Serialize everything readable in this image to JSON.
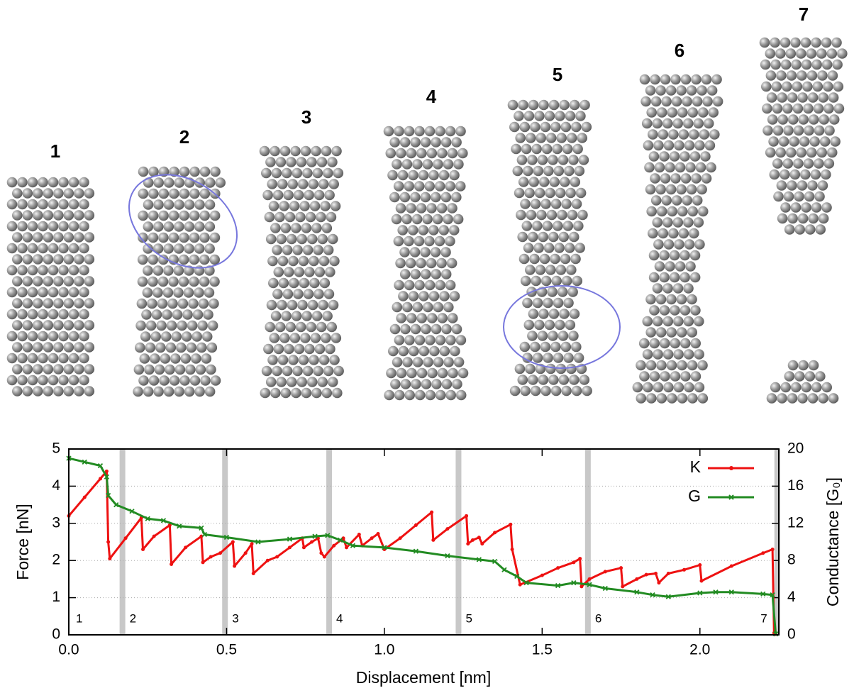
{
  "chart_data": {
    "type": "line",
    "x_label": "Displacement [nm]",
    "y_label": "Force [nN]",
    "y2_label": "Conductance [G₀]",
    "xlim": [
      0,
      2.25
    ],
    "xticks": [
      {
        "value": 0,
        "label": "0.0"
      },
      {
        "value": 0.5,
        "label": "0.5"
      },
      {
        "value": 1,
        "label": "1.0"
      },
      {
        "value": 1.5,
        "label": "1.5"
      },
      {
        "value": 2,
        "label": "2.0"
      }
    ],
    "ylim": [
      0,
      5
    ],
    "yticks": [
      0,
      1,
      2,
      3,
      4,
      5
    ],
    "y2lim": [
      0,
      20
    ],
    "y2ticks": [
      0,
      4,
      8,
      12,
      16,
      20
    ],
    "grid": true,
    "legend": "upper right",
    "stages": [
      {
        "x": 0.0,
        "label": "1"
      },
      {
        "x": 0.17,
        "label": "2"
      },
      {
        "x": 0.495,
        "label": "3"
      },
      {
        "x": 0.825,
        "label": "4"
      },
      {
        "x": 1.235,
        "label": "5"
      },
      {
        "x": 1.645,
        "label": "6"
      },
      {
        "x": 2.245,
        "label": "7"
      }
    ],
    "series": [
      {
        "name": "K",
        "color": "#ee1111",
        "x": [
          0.0,
          0.05,
          0.1,
          0.12,
          0.125,
          0.13,
          0.18,
          0.23,
          0.235,
          0.27,
          0.32,
          0.325,
          0.37,
          0.42,
          0.425,
          0.45,
          0.48,
          0.52,
          0.525,
          0.56,
          0.58,
          0.585,
          0.63,
          0.66,
          0.7,
          0.74,
          0.745,
          0.77,
          0.79,
          0.8,
          0.81,
          0.84,
          0.87,
          0.88,
          0.92,
          0.93,
          0.96,
          0.98,
          1.0,
          1.05,
          1.1,
          1.15,
          1.155,
          1.2,
          1.26,
          1.265,
          1.28,
          1.3,
          1.31,
          1.35,
          1.4,
          1.405,
          1.43,
          1.5,
          1.55,
          1.6,
          1.62,
          1.625,
          1.65,
          1.7,
          1.75,
          1.755,
          1.8,
          1.83,
          1.86,
          1.87,
          1.9,
          1.95,
          2.0,
          2.005,
          2.1,
          2.2,
          2.23,
          2.235,
          2.24
        ],
        "values": [
          3.2,
          3.7,
          4.2,
          4.4,
          2.5,
          2.05,
          2.6,
          3.15,
          2.3,
          2.65,
          2.95,
          1.9,
          2.35,
          2.65,
          1.95,
          2.1,
          2.2,
          2.5,
          1.85,
          2.2,
          2.45,
          1.65,
          2.0,
          2.1,
          2.35,
          2.6,
          2.35,
          2.5,
          2.6,
          2.2,
          2.1,
          2.4,
          2.6,
          2.35,
          2.7,
          2.4,
          2.6,
          2.72,
          2.3,
          2.6,
          2.95,
          3.3,
          2.55,
          2.85,
          3.2,
          2.45,
          2.55,
          2.62,
          2.45,
          2.75,
          2.97,
          2.3,
          1.35,
          1.6,
          1.8,
          1.95,
          2.05,
          1.3,
          1.5,
          1.7,
          1.8,
          1.3,
          1.5,
          1.62,
          1.65,
          1.4,
          1.65,
          1.75,
          1.88,
          1.45,
          1.85,
          2.2,
          2.3,
          0.05,
          0.02
        ]
      },
      {
        "name": "G",
        "color": "#228b22",
        "axis": "y2",
        "x": [
          0.0,
          0.05,
          0.1,
          0.12,
          0.125,
          0.15,
          0.2,
          0.25,
          0.3,
          0.35,
          0.42,
          0.43,
          0.5,
          0.6,
          0.7,
          0.78,
          0.82,
          0.86,
          0.9,
          1.0,
          1.1,
          1.2,
          1.3,
          1.35,
          1.38,
          1.42,
          1.45,
          1.55,
          1.6,
          1.65,
          1.7,
          1.8,
          1.85,
          1.9,
          2.0,
          2.05,
          2.1,
          2.2,
          2.23,
          2.24
        ],
        "values": [
          19,
          18.6,
          18.2,
          17,
          15,
          14,
          13.3,
          12.5,
          12.3,
          11.7,
          11.5,
          10.8,
          10.5,
          10.0,
          10.3,
          10.6,
          10.7,
          10.2,
          9.6,
          9.4,
          9.0,
          8.5,
          8.1,
          7.9,
          7.0,
          6.3,
          5.6,
          5.3,
          5.6,
          5.4,
          5.0,
          4.6,
          4.3,
          4.1,
          4.5,
          4.6,
          4.6,
          4.4,
          4.3,
          0.1
        ]
      }
    ]
  }
}
